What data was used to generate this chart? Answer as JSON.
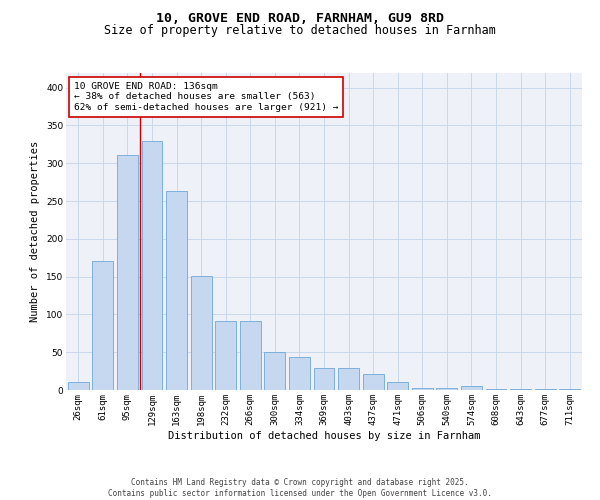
{
  "title": "10, GROVE END ROAD, FARNHAM, GU9 8RD",
  "subtitle": "Size of property relative to detached houses in Farnham",
  "xlabel": "Distribution of detached houses by size in Farnham",
  "ylabel": "Number of detached properties",
  "categories": [
    "26sqm",
    "61sqm",
    "95sqm",
    "129sqm",
    "163sqm",
    "198sqm",
    "232sqm",
    "266sqm",
    "300sqm",
    "334sqm",
    "369sqm",
    "403sqm",
    "437sqm",
    "471sqm",
    "506sqm",
    "540sqm",
    "574sqm",
    "608sqm",
    "643sqm",
    "677sqm",
    "711sqm"
  ],
  "values": [
    11,
    170,
    311,
    329,
    263,
    151,
    91,
    91,
    50,
    43,
    29,
    29,
    21,
    11,
    3,
    3,
    5,
    1,
    1,
    1,
    1
  ],
  "bar_color": "#c5d8f0",
  "bar_edge_color": "#6fa8d8",
  "grid_color": "#c8d8ea",
  "background_color": "#eef2f8",
  "annotation_box_text": "10 GROVE END ROAD: 136sqm\n← 38% of detached houses are smaller (563)\n62% of semi-detached houses are larger (921) →",
  "annotation_box_color": "#ffffff",
  "annotation_box_edge_color": "#cc0000",
  "property_line_color": "#cc0000",
  "footer_text": "Contains HM Land Registry data © Crown copyright and database right 2025.\nContains public sector information licensed under the Open Government Licence v3.0.",
  "ylim": [
    0,
    420
  ],
  "yticks": [
    0,
    50,
    100,
    150,
    200,
    250,
    300,
    350,
    400
  ],
  "title_fontsize": 9.5,
  "subtitle_fontsize": 8.5,
  "xlabel_fontsize": 7.5,
  "ylabel_fontsize": 7.5,
  "tick_fontsize": 6.5,
  "annot_fontsize": 6.8,
  "footer_fontsize": 5.5
}
